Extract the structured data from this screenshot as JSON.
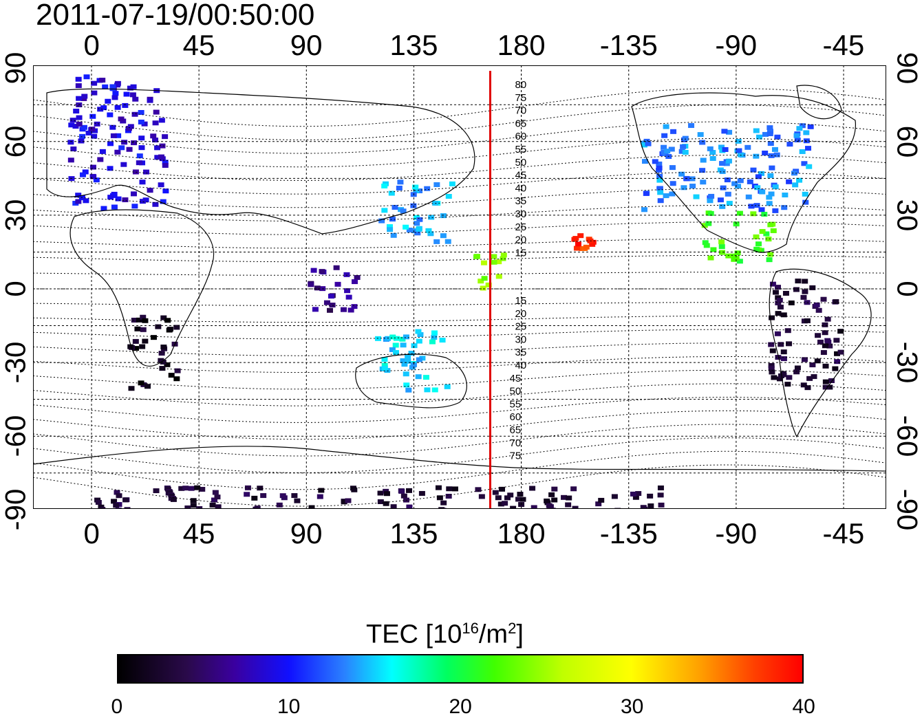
{
  "title": "2011-07-19/00:50:00",
  "map": {
    "projection": "equirectangular",
    "lon_center": 165,
    "lon_tick_labels": [
      "0",
      "45",
      "90",
      "135",
      "180",
      "-135",
      "-90",
      "-45"
    ],
    "lat_tick_labels": [
      "90",
      "60",
      "30",
      "0",
      "-30",
      "-60",
      "-90"
    ],
    "meridian_line_lon": 167,
    "meridian_line_color": "#e00000",
    "contour_labels_north": [
      "80",
      "75",
      "70",
      "65",
      "60",
      "55",
      "50",
      "45",
      "40",
      "35",
      "30",
      "25",
      "20",
      "15"
    ],
    "contour_labels_south": [
      "15",
      "20",
      "25",
      "30",
      "35",
      "40",
      "45",
      "50",
      "55",
      "60",
      "65",
      "70",
      "75"
    ],
    "tec_patches": [
      {
        "lon": 10,
        "lat": 60,
        "w": 40,
        "h": 55,
        "tec": 9
      },
      {
        "lon": -95,
        "lat": 50,
        "w": 70,
        "h": 35,
        "tec": 13
      },
      {
        "lon": -90,
        "lat": 22,
        "w": 30,
        "h": 20,
        "tec": 22
      },
      {
        "lon": -62,
        "lat": -18,
        "w": 30,
        "h": 45,
        "tec": 3
      },
      {
        "lon": 25,
        "lat": -25,
        "w": 20,
        "h": 30,
        "tec": 2
      },
      {
        "lon": 133,
        "lat": -28,
        "w": 30,
        "h": 25,
        "tec": 15
      },
      {
        "lon": 135,
        "lat": 32,
        "w": 30,
        "h": 25,
        "tec": 14
      },
      {
        "lon": 100,
        "lat": 0,
        "w": 20,
        "h": 20,
        "tec": 6
      },
      {
        "lon": -155,
        "lat": 20,
        "w": 8,
        "h": 6,
        "tec": 38
      },
      {
        "lon": 165,
        "lat": 8,
        "w": 15,
        "h": 15,
        "tec": 24
      },
      {
        "lon": 120,
        "lat": -85,
        "w": 240,
        "h": 10,
        "tec": 3
      }
    ]
  },
  "colorbar": {
    "title_prefix": "TEC  [10",
    "title_sup": "16",
    "title_mid": "/m",
    "title_sup2": "2",
    "title_suffix": "]",
    "min": 0,
    "max": 40,
    "tick_labels": [
      "0",
      "10",
      "20",
      "30",
      "40"
    ]
  }
}
